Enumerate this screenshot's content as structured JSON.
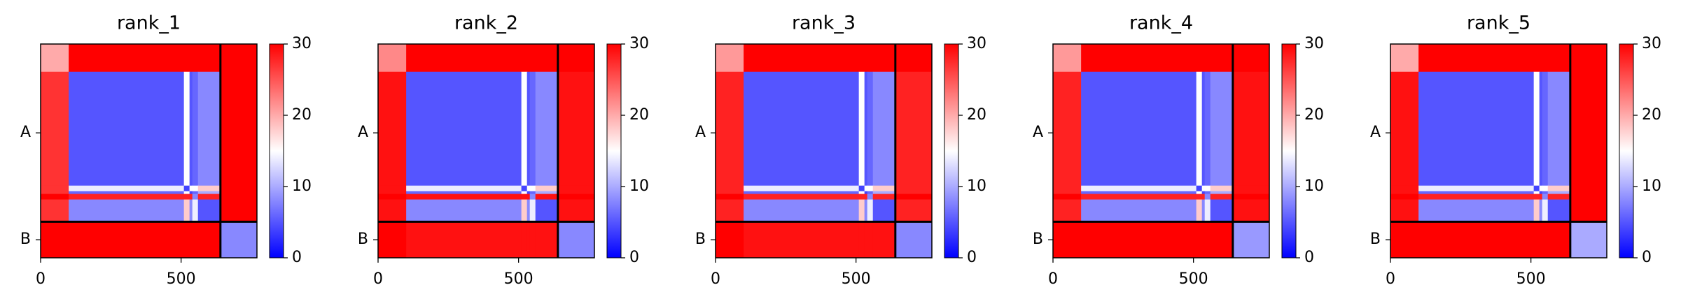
{
  "chart_data": [
    {
      "type": "heatmap",
      "title": "rank_1",
      "colormap": "bwr",
      "y_inverted": true,
      "xbins": [
        0,
        100,
        510,
        530,
        540,
        560,
        640,
        770
      ],
      "ybins": [
        0,
        100,
        510,
        530,
        540,
        560,
        640,
        770
      ],
      "z": [
        [
          20,
          30,
          30,
          30,
          30,
          30,
          30
        ],
        [
          27,
          5,
          15,
          5,
          6,
          8,
          30
        ],
        [
          27,
          14,
          4,
          15,
          15,
          18,
          30
        ],
        [
          27,
          6,
          15,
          4,
          6,
          10,
          30
        ],
        [
          30,
          28,
          28,
          28,
          8,
          28,
          30
        ],
        [
          27,
          8,
          18,
          8,
          14,
          5,
          30
        ],
        [
          30,
          30,
          30,
          30,
          30,
          30,
          8
        ]
      ],
      "xlim": [
        0,
        770
      ],
      "ylim": [
        0,
        770
      ],
      "xticks": [
        0,
        500
      ],
      "yticks": [
        {
          "value": 320,
          "label": "A"
        },
        {
          "value": 705,
          "label": "B"
        }
      ],
      "boundaries": [
        640
      ],
      "clim": [
        0,
        30
      ],
      "cticks": [
        0,
        10,
        20,
        30
      ]
    },
    {
      "type": "heatmap",
      "title": "rank_2",
      "colormap": "bwr",
      "y_inverted": true,
      "xbins": [
        0,
        100,
        510,
        530,
        540,
        560,
        640,
        770
      ],
      "ybins": [
        0,
        100,
        510,
        530,
        540,
        560,
        640,
        770
      ],
      "z": [
        [
          22,
          30,
          30,
          30,
          30,
          30,
          30
        ],
        [
          29,
          5,
          15,
          5,
          6,
          8,
          29
        ],
        [
          29,
          14,
          4,
          15,
          15,
          18,
          29
        ],
        [
          29,
          6,
          15,
          4,
          6,
          10,
          29
        ],
        [
          30,
          29,
          29,
          29,
          8,
          29,
          30
        ],
        [
          29,
          8,
          18,
          8,
          14,
          5,
          29
        ],
        [
          30,
          29,
          29,
          29,
          29,
          29,
          8
        ]
      ],
      "xlim": [
        0,
        770
      ],
      "ylim": [
        0,
        770
      ],
      "xticks": [
        0,
        500
      ],
      "yticks": [
        {
          "value": 320,
          "label": "A"
        },
        {
          "value": 705,
          "label": "B"
        }
      ],
      "boundaries": [
        640
      ],
      "clim": [
        0,
        30
      ],
      "cticks": [
        0,
        10,
        20,
        30
      ]
    },
    {
      "type": "heatmap",
      "title": "rank_3",
      "colormap": "bwr",
      "y_inverted": true,
      "xbins": [
        0,
        100,
        510,
        530,
        540,
        560,
        640,
        770
      ],
      "ybins": [
        0,
        100,
        510,
        530,
        540,
        560,
        640,
        770
      ],
      "z": [
        [
          21,
          30,
          30,
          30,
          30,
          30,
          30
        ],
        [
          28,
          5,
          15,
          5,
          6,
          8,
          28
        ],
        [
          28,
          14,
          4,
          15,
          15,
          18,
          28
        ],
        [
          28,
          6,
          15,
          4,
          6,
          10,
          28
        ],
        [
          30,
          28,
          28,
          28,
          8,
          28,
          30
        ],
        [
          28,
          8,
          18,
          8,
          14,
          5,
          28
        ],
        [
          30,
          29,
          29,
          29,
          29,
          29,
          8
        ]
      ],
      "xlim": [
        0,
        770
      ],
      "ylim": [
        0,
        770
      ],
      "xticks": [
        0,
        500
      ],
      "yticks": [
        {
          "value": 320,
          "label": "A"
        },
        {
          "value": 705,
          "label": "B"
        }
      ],
      "boundaries": [
        640
      ],
      "clim": [
        0,
        30
      ],
      "cticks": [
        0,
        10,
        20,
        30
      ]
    },
    {
      "type": "heatmap",
      "title": "rank_4",
      "colormap": "bwr",
      "y_inverted": true,
      "xbins": [
        0,
        100,
        510,
        530,
        540,
        560,
        640,
        770
      ],
      "ybins": [
        0,
        100,
        510,
        530,
        540,
        560,
        640,
        770
      ],
      "z": [
        [
          21,
          30,
          30,
          30,
          30,
          30,
          30
        ],
        [
          28,
          5,
          15,
          5,
          6,
          8,
          29
        ],
        [
          28,
          14,
          4,
          15,
          15,
          18,
          29
        ],
        [
          28,
          6,
          15,
          4,
          6,
          10,
          29
        ],
        [
          30,
          28,
          28,
          28,
          8,
          28,
          30
        ],
        [
          28,
          8,
          18,
          8,
          14,
          5,
          29
        ],
        [
          30,
          30,
          30,
          30,
          30,
          30,
          9
        ]
      ],
      "xlim": [
        0,
        770
      ],
      "ylim": [
        0,
        770
      ],
      "xticks": [
        0,
        500
      ],
      "yticks": [
        {
          "value": 320,
          "label": "A"
        },
        {
          "value": 705,
          "label": "B"
        }
      ],
      "boundaries": [
        640
      ],
      "clim": [
        0,
        30
      ],
      "cticks": [
        0,
        10,
        20,
        30
      ]
    },
    {
      "type": "heatmap",
      "title": "rank_5",
      "colormap": "bwr",
      "y_inverted": true,
      "xbins": [
        0,
        100,
        510,
        530,
        540,
        560,
        640,
        770
      ],
      "ybins": [
        0,
        100,
        510,
        530,
        540,
        560,
        640,
        770
      ],
      "z": [
        [
          20,
          30,
          30,
          30,
          30,
          30,
          30
        ],
        [
          29,
          5,
          15,
          5,
          6,
          8,
          30
        ],
        [
          29,
          14,
          4,
          15,
          15,
          18,
          30
        ],
        [
          29,
          6,
          15,
          4,
          6,
          10,
          30
        ],
        [
          30,
          28,
          28,
          28,
          8,
          28,
          30
        ],
        [
          29,
          8,
          18,
          8,
          14,
          5,
          30
        ],
        [
          30,
          30,
          30,
          30,
          30,
          30,
          10
        ]
      ],
      "xlim": [
        0,
        770
      ],
      "ylim": [
        0,
        770
      ],
      "xticks": [
        0,
        500
      ],
      "yticks": [
        {
          "value": 320,
          "label": "A"
        },
        {
          "value": 705,
          "label": "B"
        }
      ],
      "boundaries": [
        640
      ],
      "clim": [
        0,
        30
      ],
      "cticks": [
        0,
        10,
        20,
        30
      ]
    }
  ]
}
